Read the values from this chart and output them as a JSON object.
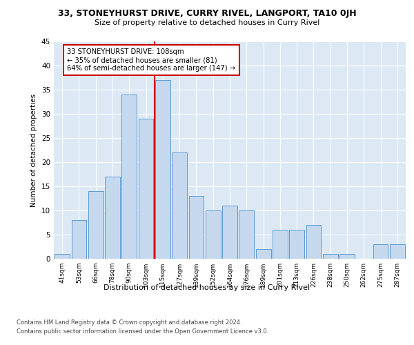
{
  "title": "33, STONEYHURST DRIVE, CURRY RIVEL, LANGPORT, TA10 0JH",
  "subtitle": "Size of property relative to detached houses in Curry Rivel",
  "xlabel": "Distribution of detached houses by size in Curry Rivel",
  "ylabel": "Number of detached properties",
  "categories": [
    "41sqm",
    "53sqm",
    "66sqm",
    "78sqm",
    "90sqm",
    "103sqm",
    "115sqm",
    "127sqm",
    "139sqm",
    "152sqm",
    "164sqm",
    "176sqm",
    "189sqm",
    "201sqm",
    "213sqm",
    "226sqm",
    "238sqm",
    "250sqm",
    "262sqm",
    "275sqm",
    "287sqm"
  ],
  "values": [
    1,
    8,
    14,
    17,
    34,
    29,
    37,
    22,
    13,
    10,
    11,
    10,
    2,
    6,
    6,
    7,
    1,
    1,
    0,
    3,
    3
  ],
  "bar_color": "#c5d8ed",
  "bar_edge_color": "#5b9bd5",
  "vline_color": "#cc0000",
  "annotation_text": "33 STONEYHURST DRIVE: 108sqm\n← 35% of detached houses are smaller (81)\n64% of semi-detached houses are larger (147) →",
  "annotation_box_color": "white",
  "annotation_box_edge_color": "#cc0000",
  "ylim": [
    0,
    45
  ],
  "yticks": [
    0,
    5,
    10,
    15,
    20,
    25,
    30,
    35,
    40,
    45
  ],
  "background_color": "#dce9f5",
  "footer_line1": "Contains HM Land Registry data © Crown copyright and database right 2024.",
  "footer_line2": "Contains public sector information licensed under the Open Government Licence v3.0."
}
